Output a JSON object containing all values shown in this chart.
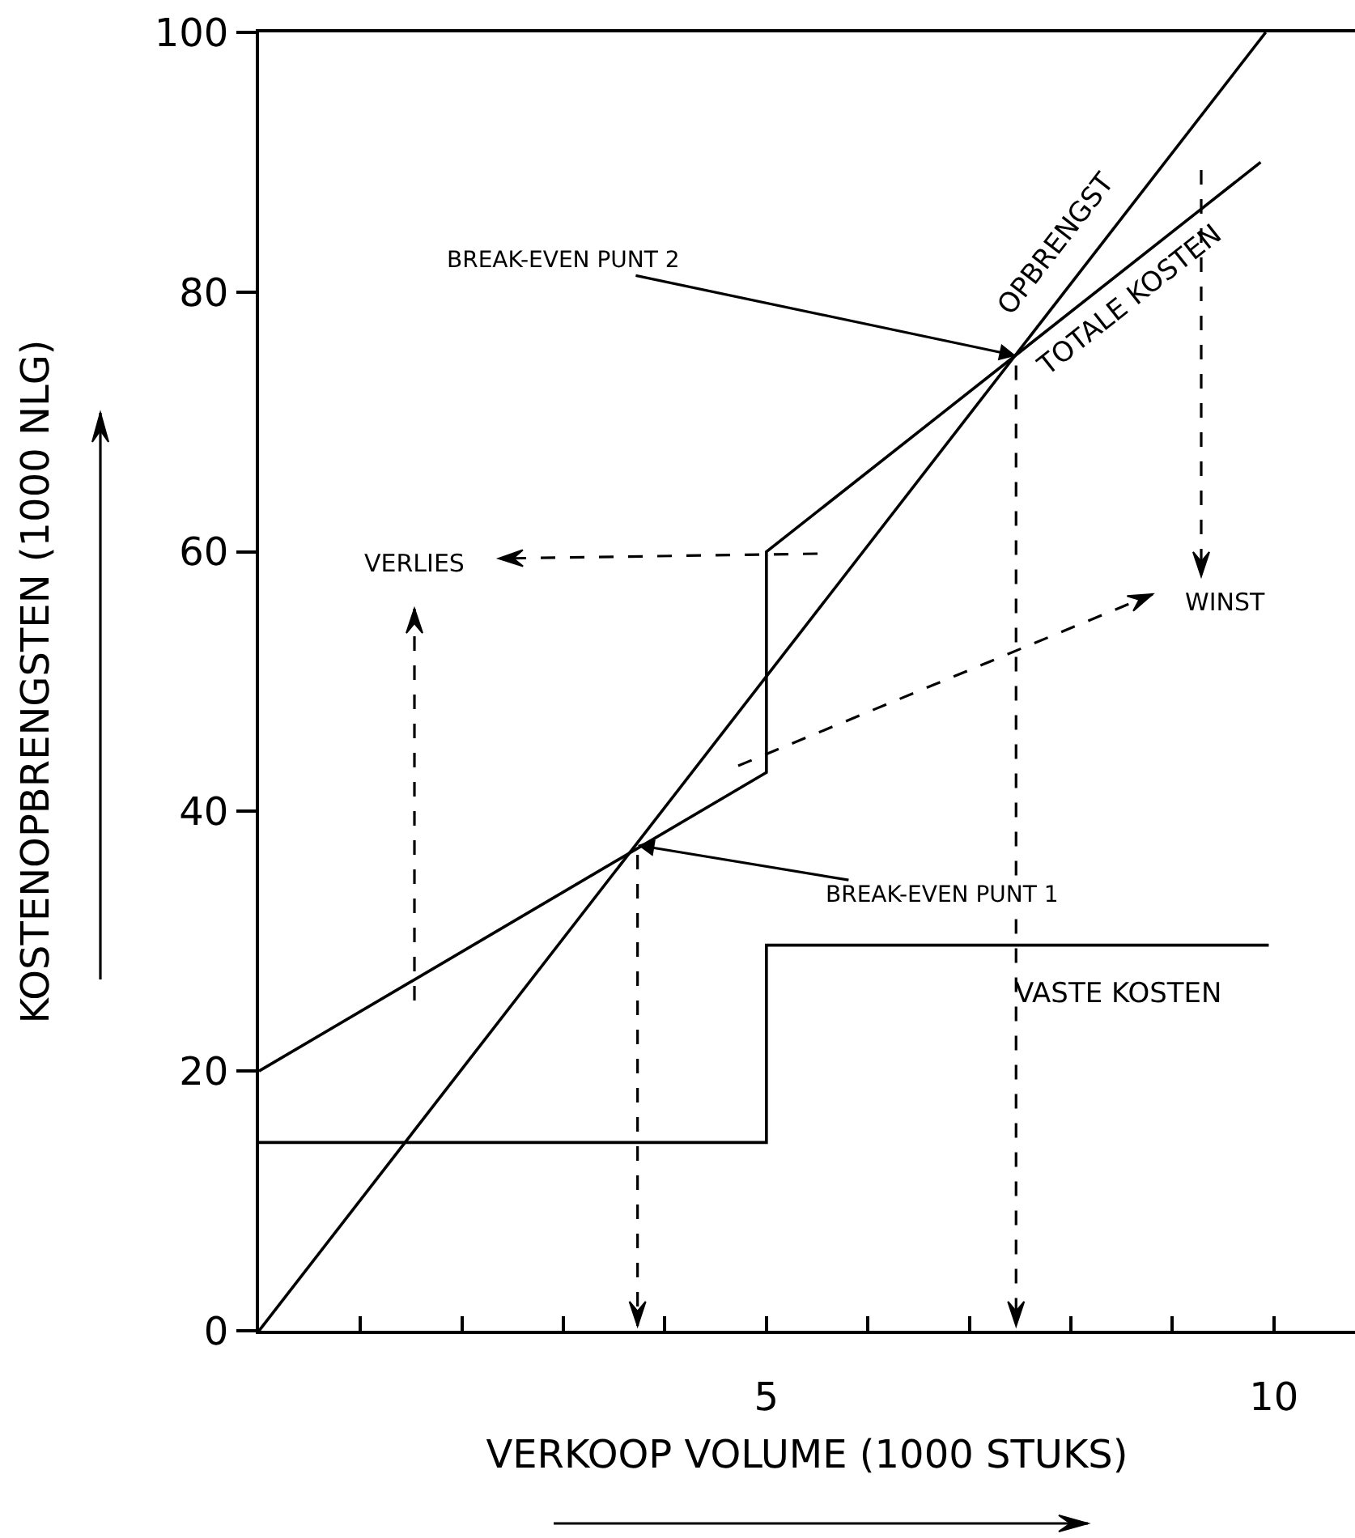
{
  "chart_data": {
    "type": "line",
    "xlabel": "VERKOOP VOLUME (1000 STUKS)",
    "ylabel": "KOSTENOPBRENGSTEN (1000 NLG)",
    "series": [
      {
        "name": "OPBRENGST",
        "color": "#000000",
        "x": [
          0,
          9.92
        ],
        "values": [
          0,
          100
        ]
      },
      {
        "name": "TOTALE KOSTEN",
        "color": "#000000",
        "x": [
          0,
          5,
          5,
          9.87
        ],
        "values": [
          20,
          43,
          60,
          90
        ]
      },
      {
        "name": "VASTE KOSTEN",
        "color": "#000000",
        "x": [
          0,
          5,
          5,
          9.95
        ],
        "values": [
          14.5,
          14.5,
          29.7,
          29.7
        ]
      }
    ],
    "xlim": [
      0,
      10.8
    ],
    "ylim": [
      0,
      100
    ],
    "xticks": [
      {
        "value": 1,
        "label": null
      },
      {
        "value": 2,
        "label": null
      },
      {
        "value": 3,
        "label": null
      },
      {
        "value": 4,
        "label": null
      },
      5,
      {
        "value": 6,
        "label": null
      },
      {
        "value": 7,
        "label": null
      },
      {
        "value": 8,
        "label": null
      },
      {
        "value": 9,
        "label": null
      },
      10
    ],
    "yticks": [
      0,
      20,
      40,
      60,
      80,
      100
    ],
    "annotations": [
      {
        "text": "BREAK-EVEN PUNT 2",
        "x": 7.46,
        "y": 75.1
      },
      {
        "text": "BREAK-EVEN PUNT 1",
        "x": 3.73,
        "y": 37.4
      },
      "VERLIES",
      "WINST"
    ],
    "legend": false,
    "marker": "none",
    "line_style": "solid"
  }
}
